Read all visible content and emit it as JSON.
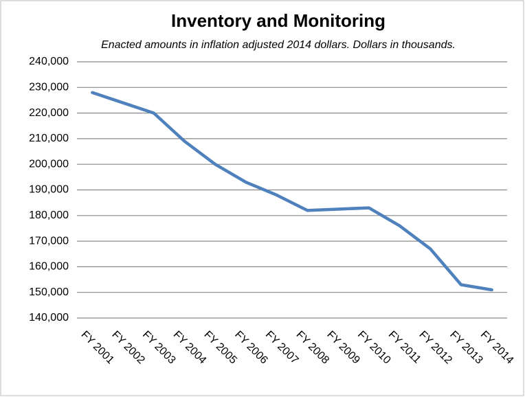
{
  "chart_data": {
    "type": "line",
    "title": "Inventory and Monitoring",
    "subtitle": "Enacted amounts in inflation adjusted 2014 dollars. Dollars in thousands.",
    "categories": [
      "FY 2001",
      "FY 2002",
      "FY 2003",
      "FY 2004",
      "FY 2005",
      "FY 2006",
      "FY 2007",
      "FY 2008",
      "FY 2009",
      "FY 2010",
      "FY 2011",
      "FY 2012",
      "FY 2013",
      "FY 2014"
    ],
    "values": [
      228000,
      224000,
      220000,
      209000,
      200000,
      193000,
      188000,
      182000,
      182500,
      183000,
      176000,
      167000,
      153000,
      151000
    ],
    "color": "#4f81bd",
    "ylim": [
      140000,
      240000
    ],
    "yticks": [
      {
        "value": 140000,
        "label": "140,000"
      },
      {
        "value": 150000,
        "label": "150,000"
      },
      {
        "value": 160000,
        "label": "160,000"
      },
      {
        "value": 170000,
        "label": "170,000"
      },
      {
        "value": 180000,
        "label": "180,000"
      },
      {
        "value": 190000,
        "label": "190,000"
      },
      {
        "value": 200000,
        "label": "200,000"
      },
      {
        "value": 210000,
        "label": "210,000"
      },
      {
        "value": 220000,
        "label": "220,000"
      },
      {
        "value": 230000,
        "label": "230,000"
      },
      {
        "value": 240000,
        "label": "240,000"
      }
    ],
    "grid": true
  }
}
